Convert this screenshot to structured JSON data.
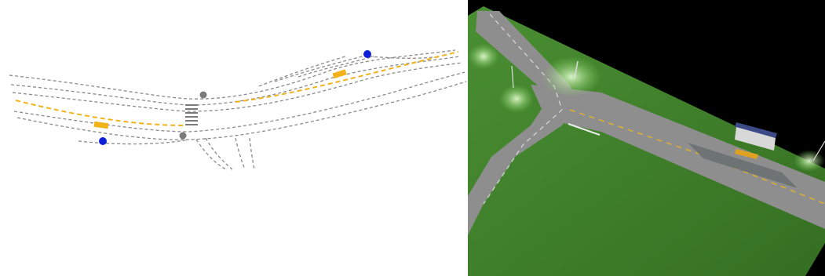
{
  "colors": {
    "background_left": "#ffffff",
    "lane_line": "#8a8a8a",
    "center_line": "#f2b21a",
    "marker_blue": "#1020d8",
    "marker_grey": "#7a7a7a",
    "render_background": "#000000",
    "grass": "#3f7f2a",
    "asphalt": "#8e8e8e",
    "lane_marking_render": "#d9d9d9"
  },
  "schematic": {
    "markers": [
      {
        "kind": "blue-dot",
        "icon": "blue-dot-icon"
      },
      {
        "kind": "blue-dot",
        "icon": "blue-dot-icon"
      },
      {
        "kind": "grey-dot",
        "icon": "grey-dot-icon"
      },
      {
        "kind": "grey-dot",
        "icon": "grey-dot-icon"
      }
    ]
  },
  "render": {
    "view": "3d-perspective",
    "features": [
      "bus-stop-shelter-icon",
      "street-lamp-icon",
      "grass-field",
      "t-junction-road"
    ]
  }
}
